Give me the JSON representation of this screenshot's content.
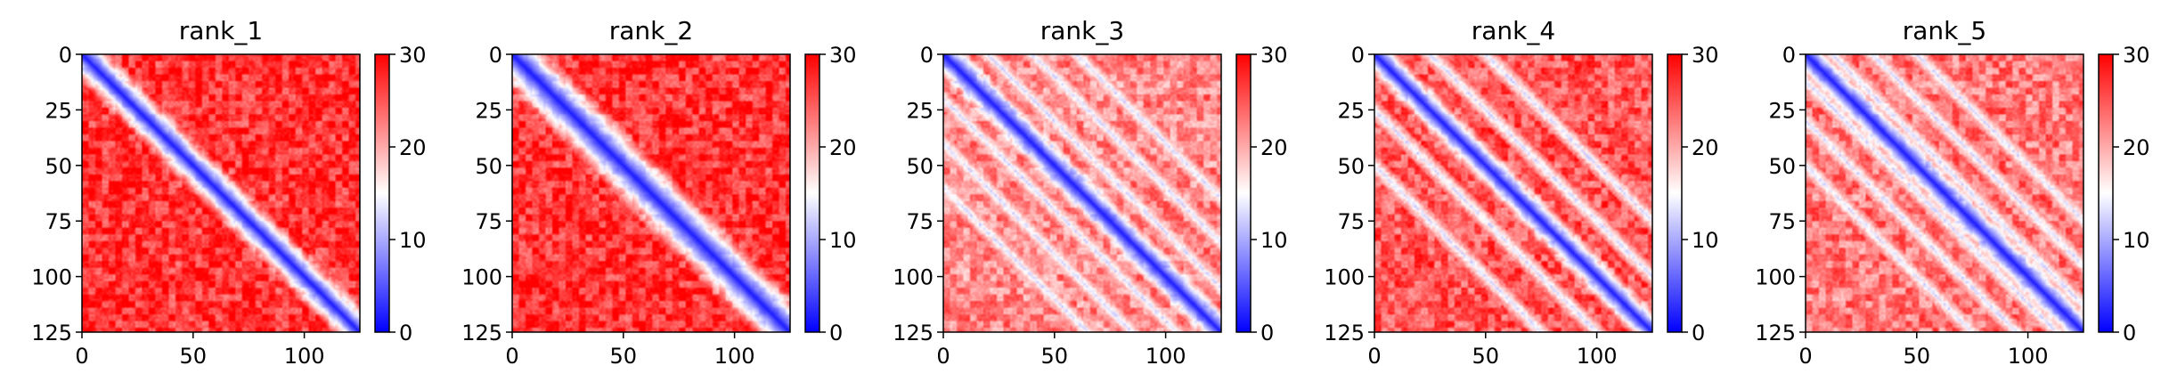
{
  "chart_data": [
    {
      "type": "heatmap",
      "title": "rank_1",
      "xlabel": "",
      "ylabel": "",
      "xlim": [
        0,
        125
      ],
      "ylim": [
        125,
        0
      ],
      "x_ticks": [
        "0",
        "50",
        "100"
      ],
      "y_ticks": [
        "0",
        "25",
        "50",
        "75",
        "100",
        "125"
      ],
      "colorbar": {
        "range": [
          0,
          30
        ],
        "ticks": [
          "0",
          "10",
          "20",
          "30"
        ],
        "colormap": [
          "#0000ff",
          "#ffffff",
          "#ff0000"
        ]
      },
      "pattern": {
        "diagonal_band_width": 6,
        "off_diagonal_level": 27,
        "side_bands": []
      }
    },
    {
      "type": "heatmap",
      "title": "rank_2",
      "xlabel": "",
      "ylabel": "",
      "xlim": [
        0,
        125
      ],
      "ylim": [
        125,
        0
      ],
      "x_ticks": [
        "0",
        "50",
        "100"
      ],
      "y_ticks": [
        "0",
        "25",
        "50",
        "75",
        "100",
        "125"
      ],
      "colorbar": {
        "range": [
          0,
          30
        ],
        "ticks": [
          "0",
          "10",
          "20",
          "30"
        ],
        "colormap": [
          "#0000ff",
          "#ffffff",
          "#ff0000"
        ]
      },
      "pattern": {
        "diagonal_band_width": 8,
        "off_diagonal_level": 27,
        "side_bands": []
      }
    },
    {
      "type": "heatmap",
      "title": "rank_3",
      "xlabel": "",
      "ylabel": "",
      "xlim": [
        0,
        125
      ],
      "ylim": [
        125,
        0
      ],
      "x_ticks": [
        "0",
        "50",
        "100"
      ],
      "y_ticks": [
        "0",
        "25",
        "50",
        "75",
        "100",
        "125"
      ],
      "colorbar": {
        "range": [
          0,
          30
        ],
        "ticks": [
          "0",
          "10",
          "20",
          "30"
        ],
        "colormap": [
          "#0000ff",
          "#ffffff",
          "#ff0000"
        ]
      },
      "pattern": {
        "diagonal_band_width": 5,
        "off_diagonal_level": 22,
        "side_bands": [
          20,
          40,
          60
        ]
      }
    },
    {
      "type": "heatmap",
      "title": "rank_4",
      "xlabel": "",
      "ylabel": "",
      "xlim": [
        0,
        125
      ],
      "ylim": [
        125,
        0
      ],
      "x_ticks": [
        "0",
        "50",
        "100"
      ],
      "y_ticks": [
        "0",
        "25",
        "50",
        "75",
        "100",
        "125"
      ],
      "colorbar": {
        "range": [
          0,
          30
        ],
        "ticks": [
          "0",
          "10",
          "20",
          "30"
        ],
        "colormap": [
          "#0000ff",
          "#ffffff",
          "#ff0000"
        ]
      },
      "pattern": {
        "diagonal_band_width": 5,
        "off_diagonal_level": 25,
        "side_bands": [
          25,
          50
        ]
      }
    },
    {
      "type": "heatmap",
      "title": "rank_5",
      "xlabel": "",
      "ylabel": "",
      "xlim": [
        0,
        125
      ],
      "ylim": [
        125,
        0
      ],
      "x_ticks": [
        "0",
        "50",
        "100"
      ],
      "y_ticks": [
        "0",
        "25",
        "50",
        "75",
        "100",
        "125"
      ],
      "colorbar": {
        "range": [
          0,
          30
        ],
        "ticks": [
          "0",
          "10",
          "20",
          "30"
        ],
        "colormap": [
          "#0000ff",
          "#ffffff",
          "#ff0000"
        ]
      },
      "pattern": {
        "diagonal_band_width": 5,
        "off_diagonal_level": 23,
        "side_bands": [
          12,
          30,
          50
        ]
      }
    }
  ]
}
